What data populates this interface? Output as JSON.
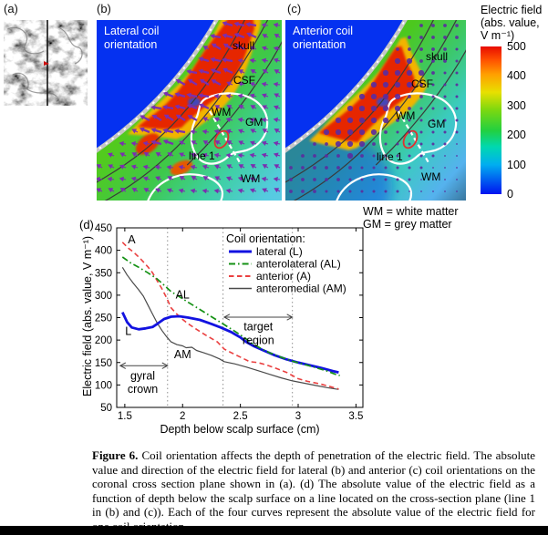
{
  "panels": {
    "a": {
      "label": "(a)"
    },
    "b": {
      "label": "(b)",
      "title": "Lateral coil orientation",
      "regions": {
        "skull": "skull",
        "csf": "CSF",
        "wm1": "WM",
        "gm": "GM",
        "line1": "line 1",
        "wm2": "WM"
      }
    },
    "c": {
      "label": "(c)",
      "title": "Anterior coil orientation",
      "regions": {
        "skull": "skull",
        "csf": "CSF",
        "wm1": "WM",
        "gm": "GM",
        "line1": "line 1",
        "wm2": "WM"
      }
    },
    "d": {
      "label": "(d)"
    }
  },
  "colorbar": {
    "title_lines": [
      "Electric field",
      "(abs. value,",
      "V m⁻¹)"
    ],
    "ticks": [
      500,
      400,
      300,
      200,
      100,
      0
    ],
    "top_color": "#e80c00",
    "bottom_color": "#0014f0"
  },
  "notes": [
    "WM = white matter",
    "GM = grey matter"
  ],
  "chart_data": {
    "type": "line",
    "xlabel": "Depth below scalp surface (cm)",
    "ylabel": "Electric field (abs. value, V m⁻¹)",
    "xlim": [
      1.43,
      3.56
    ],
    "ylim": [
      50,
      450
    ],
    "xticks": [
      1.5,
      2,
      2.5,
      3,
      3.5
    ],
    "yticks": [
      50,
      100,
      150,
      200,
      250,
      300,
      350,
      400,
      450
    ],
    "grid": false,
    "legend_position": "upper right",
    "legend_title": "Coil orientation:",
    "series": [
      {
        "name": "lateral (L)",
        "color": "#1212e0",
        "style": "solid-thick",
        "points": [
          [
            1.48,
            262
          ],
          [
            1.52,
            240
          ],
          [
            1.56,
            228
          ],
          [
            1.62,
            224
          ],
          [
            1.68,
            226
          ],
          [
            1.74,
            229
          ],
          [
            1.78,
            236
          ],
          [
            1.84,
            247
          ],
          [
            1.9,
            252
          ],
          [
            1.97,
            253
          ],
          [
            2.05,
            250
          ],
          [
            2.15,
            245
          ],
          [
            2.25,
            236
          ],
          [
            2.33,
            228
          ],
          [
            2.42,
            218
          ],
          [
            2.5,
            206
          ],
          [
            2.55,
            196
          ],
          [
            2.62,
            186
          ],
          [
            2.7,
            177
          ],
          [
            2.8,
            166
          ],
          [
            2.9,
            157
          ],
          [
            3.0,
            150
          ],
          [
            3.1,
            144
          ],
          [
            3.2,
            138
          ],
          [
            3.3,
            131
          ],
          [
            3.35,
            128
          ]
        ]
      },
      {
        "name": "anterolateral (AL)",
        "color": "#149114",
        "style": "dash-dot",
        "points": [
          [
            1.48,
            385
          ],
          [
            1.55,
            372
          ],
          [
            1.62,
            362
          ],
          [
            1.7,
            350
          ],
          [
            1.78,
            336
          ],
          [
            1.85,
            320
          ],
          [
            1.9,
            308
          ],
          [
            1.97,
            297
          ],
          [
            2.05,
            284
          ],
          [
            2.15,
            268
          ],
          [
            2.25,
            252
          ],
          [
            2.35,
            236
          ],
          [
            2.45,
            220
          ],
          [
            2.52,
            208
          ],
          [
            2.6,
            193
          ],
          [
            2.68,
            181
          ],
          [
            2.75,
            172
          ],
          [
            2.85,
            162
          ],
          [
            2.95,
            153
          ],
          [
            3.05,
            146
          ],
          [
            3.15,
            139
          ],
          [
            3.25,
            131
          ],
          [
            3.32,
            124
          ],
          [
            3.36,
            121
          ]
        ]
      },
      {
        "name": "anterior (A)",
        "color": "#ea4040",
        "style": "dashed",
        "points": [
          [
            1.48,
            418
          ],
          [
            1.53,
            405
          ],
          [
            1.58,
            395
          ],
          [
            1.64,
            380
          ],
          [
            1.7,
            363
          ],
          [
            1.74,
            350
          ],
          [
            1.78,
            332
          ],
          [
            1.82,
            315
          ],
          [
            1.86,
            295
          ],
          [
            1.9,
            272
          ],
          [
            1.95,
            258
          ],
          [
            2.0,
            246
          ],
          [
            2.05,
            236
          ],
          [
            2.12,
            224
          ],
          [
            2.2,
            211
          ],
          [
            2.3,
            196
          ],
          [
            2.36,
            180
          ],
          [
            2.42,
            172
          ],
          [
            2.5,
            162
          ],
          [
            2.58,
            152
          ],
          [
            2.65,
            150
          ],
          [
            2.72,
            145
          ],
          [
            2.8,
            138
          ],
          [
            2.9,
            128
          ],
          [
            3.0,
            114
          ],
          [
            3.08,
            108
          ],
          [
            3.18,
            103
          ],
          [
            3.28,
            96
          ],
          [
            3.35,
            91
          ]
        ]
      },
      {
        "name": "anteromedial (AM)",
        "color": "#4a4a4a",
        "style": "solid-thin",
        "points": [
          [
            1.48,
            362
          ],
          [
            1.52,
            345
          ],
          [
            1.57,
            328
          ],
          [
            1.62,
            312
          ],
          [
            1.66,
            298
          ],
          [
            1.7,
            278
          ],
          [
            1.74,
            258
          ],
          [
            1.78,
            238
          ],
          [
            1.82,
            222
          ],
          [
            1.86,
            208
          ],
          [
            1.9,
            196
          ],
          [
            1.95,
            190
          ],
          [
            2.0,
            187
          ],
          [
            2.03,
            183
          ],
          [
            2.08,
            184
          ],
          [
            2.12,
            177
          ],
          [
            2.18,
            172
          ],
          [
            2.25,
            166
          ],
          [
            2.32,
            158
          ],
          [
            2.36,
            152
          ],
          [
            2.45,
            147
          ],
          [
            2.55,
            140
          ],
          [
            2.65,
            132
          ],
          [
            2.75,
            124
          ],
          [
            2.85,
            116
          ],
          [
            2.95,
            109
          ],
          [
            3.05,
            104
          ],
          [
            3.15,
            99
          ],
          [
            3.25,
            94
          ],
          [
            3.35,
            90
          ]
        ]
      }
    ],
    "vlines": [
      1.87,
      2.35,
      2.95
    ],
    "annotations": {
      "curve_labels": [
        {
          "text": "A",
          "x": 1.56,
          "y": 415
        },
        {
          "text": "AL",
          "x": 2.0,
          "y": 293
        },
        {
          "text": "L",
          "x": 1.53,
          "y": 211
        },
        {
          "text": "AM",
          "x": 2.0,
          "y": 160
        }
      ],
      "spans": [
        {
          "lines": [
            "target",
            "region"
          ],
          "x1": 2.36,
          "x2": 2.95,
          "arrow_y": 251,
          "tx": 2.655,
          "ty": [
            222,
            191
          ]
        },
        {
          "lines": [
            "gyral",
            "crown"
          ],
          "x1": 1.46,
          "x2": 1.87,
          "arrow_y": 143,
          "tx": 1.655,
          "ty": [
            112,
            82
          ]
        }
      ]
    }
  },
  "caption": {
    "tag": "Figure 6.",
    "text": "Coil orientation affects the depth of penetration of the electric field. The absolute value and direction of the electric field for lateral (b) and anterior (c) coil orientations on the coronal cross section plane shown in (a). (d) The absolute value of the electric field as a function of depth below the scalp surface on a line located on the cross-section plane (line 1 in (b) and (c)). Each of the four curves represent the absolute value of the electric field for one coil orientation."
  }
}
